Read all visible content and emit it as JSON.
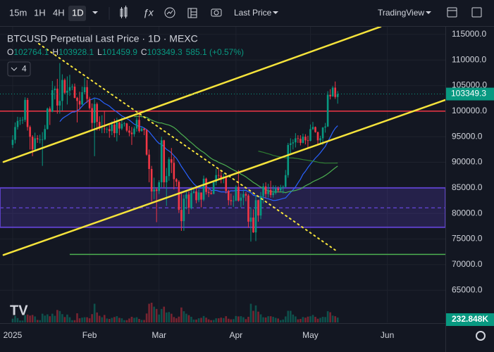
{
  "toolbar": {
    "intervals": [
      "15m",
      "1H",
      "4H",
      "1D"
    ],
    "price_type": "Last Price",
    "layout_name": "TradingView"
  },
  "chart_data": {
    "type": "candlestick",
    "title": "BTCUSD Perpetual Last Price · 1D · MEXC",
    "legend": {
      "labels": [
        "O",
        "H",
        "L",
        "C"
      ],
      "change": "585.1 (+0.57%)"
    },
    "indicator_count": "4",
    "up_color": "#089981",
    "down_color": "#f23645",
    "open": [
      93400,
      94400,
      96900,
      98100,
      98200,
      98300,
      102200,
      96900,
      95000,
      92500,
      94700,
      94500,
      94500,
      94500,
      96500,
      100500,
      99900,
      104100,
      104400,
      101100,
      102000,
      106100,
      103600,
      104000,
      104700,
      104800,
      102600,
      102000,
      101300,
      103700,
      104700,
      102400,
      100600,
      97700,
      101400,
      97900,
      96600,
      96600,
      96500,
      96500,
      96100,
      97400,
      95700,
      97800,
      96600,
      97500,
      97600,
      96200,
      95800,
      95500,
      96600,
      98300,
      96100,
      96600,
      96300,
      91500,
      88700,
      84300,
      84700,
      84400,
      86100,
      94300,
      86100,
      87300,
      90600,
      89900,
      86700,
      86200,
      80700,
      78500,
      82900,
      83700,
      81100,
      84000,
      84300,
      82600,
      84100,
      82700,
      86800,
      84200,
      84000,
      83800,
      86100,
      87500,
      87400,
      86900,
      87200,
      84400,
      82600,
      82400,
      82500,
      85200,
      82500,
      83100,
      83800,
      83500,
      78400,
      79200,
      76300,
      82600,
      79600,
      83400,
      85300,
      83800,
      84600,
      83600,
      84000,
      84900,
      84500,
      85100,
      85200,
      87500,
      93400,
      93700,
      93900,
      94700,
      94600,
      93800,
      95000,
      94300,
      94200,
      96500,
      96900,
      95900,
      94300,
      94700,
      96800,
      97000,
      103200,
      102900,
      104600,
      102764.1
    ],
    "high": [
      95300,
      97800,
      98900,
      98800,
      98900,
      102700,
      102600,
      97200,
      95300,
      95800,
      95300,
      95400,
      95900,
      97300,
      100700,
      100900,
      105900,
      104900,
      106300,
      109400,
      107200,
      106400,
      106800,
      107100,
      105300,
      105400,
      102800,
      103800,
      104800,
      106500,
      106100,
      102800,
      101500,
      102500,
      101700,
      99000,
      99200,
      100100,
      96900,
      97300,
      98000,
      98500,
      98700,
      97900,
      98800,
      97900,
      97700,
      97100,
      96900,
      97000,
      98800,
      99500,
      96900,
      96700,
      96500,
      92500,
      89300,
      87000,
      85100,
      86500,
      95000,
      94400,
      88900,
      91000,
      92800,
      91100,
      86900,
      86500,
      83900,
      83600,
      84400,
      84300,
      85200,
      85000,
      85000,
      84700,
      84100,
      87400,
      87000,
      85000,
      84500,
      86100,
      88700,
      88800,
      88300,
      87800,
      87500,
      84600,
      83900,
      83500,
      85500,
      88500,
      83900,
      84700,
      84200,
      83800,
      81200,
      80800,
      83500,
      82700,
      84200,
      85900,
      86100,
      85800,
      86400,
      85500,
      85500,
      85300,
      85600,
      85500,
      88500,
      93800,
      94700,
      94500,
      95700,
      95300,
      95300,
      95600,
      95500,
      95200,
      97400,
      97900,
      97000,
      96000,
      95200,
      96900,
      97700,
      103900,
      104300,
      104900,
      105800,
      103928.1
    ],
    "low": [
      92800,
      93700,
      96400,
      97300,
      97500,
      97900,
      96200,
      92500,
      91200,
      92200,
      93800,
      93700,
      89300,
      94300,
      96400,
      97300,
      99800,
      102300,
      99500,
      99500,
      100100,
      103300,
      101300,
      103000,
      104100,
      102500,
      97800,
      100300,
      101200,
      103300,
      101600,
      100300,
      96200,
      91200,
      96200,
      96200,
      95700,
      95700,
      95700,
      94800,
      95300,
      94900,
      94100,
      95300,
      96300,
      97000,
      95900,
      95100,
      93400,
      95000,
      96000,
      95800,
      96000,
      95300,
      91300,
      86100,
      82300,
      82800,
      78300,
      83800,
      85100,
      85100,
      81500,
      86400,
      87900,
      84700,
      85300,
      80100,
      76600,
      76600,
      80800,
      79900,
      80800,
      83900,
      82000,
      82200,
      81200,
      82400,
      83700,
      83200,
      83700,
      83800,
      85500,
      86500,
      85900,
      85900,
      83900,
      81600,
      81600,
      81300,
      82400,
      82300,
      81200,
      81600,
      82400,
      77200,
      74500,
      76200,
      74600,
      78400,
      78900,
      82000,
      83000,
      83100,
      83100,
      83100,
      83700,
      84100,
      84300,
      83900,
      85100,
      87000,
      91700,
      92500,
      92900,
      93800,
      93300,
      93700,
      93500,
      92900,
      94100,
      96300,
      95800,
      93500,
      93500,
      93400,
      95800,
      96900,
      102300,
      102800,
      102400,
      101459.9
    ],
    "close": [
      94400,
      96900,
      98100,
      98200,
      98300,
      102200,
      96900,
      95000,
      92500,
      94700,
      94500,
      94500,
      94500,
      96500,
      100500,
      99900,
      104100,
      104400,
      101100,
      102000,
      106100,
      103600,
      104000,
      104700,
      104800,
      102600,
      102000,
      101300,
      103700,
      104700,
      102400,
      100600,
      97700,
      101400,
      97900,
      96600,
      96600,
      96500,
      96500,
      96100,
      97400,
      95700,
      97800,
      96600,
      97500,
      97600,
      96200,
      95800,
      95500,
      96600,
      98300,
      96100,
      96600,
      96300,
      91500,
      88700,
      84300,
      84700,
      84400,
      86100,
      94300,
      86100,
      87300,
      90600,
      89900,
      86700,
      86200,
      80700,
      78500,
      82900,
      83700,
      81100,
      84000,
      84300,
      82600,
      84100,
      82700,
      86800,
      84200,
      84000,
      83800,
      86100,
      87500,
      87400,
      86900,
      87200,
      84400,
      82600,
      82400,
      82500,
      85200,
      82500,
      83100,
      83800,
      83500,
      78400,
      79200,
      76300,
      82600,
      79600,
      83400,
      85300,
      83800,
      84600,
      83600,
      84000,
      84900,
      84500,
      85100,
      85200,
      87500,
      93400,
      93700,
      93900,
      94700,
      94600,
      93800,
      95000,
      94300,
      94200,
      96500,
      96900,
      95900,
      94300,
      94700,
      96800,
      97000,
      103200,
      102900,
      104600,
      102764.1,
      103349.3
    ],
    "volume": [
      180000,
      320000,
      210000,
      90000,
      90000,
      350000,
      380000,
      330000,
      360000,
      290000,
      120000,
      110000,
      420000,
      330000,
      390000,
      300000,
      420000,
      320000,
      600000,
      550000,
      400000,
      260000,
      380000,
      250000,
      110000,
      110000,
      440000,
      200000,
      230000,
      250000,
      250000,
      200000,
      400000,
      900000,
      480000,
      320000,
      250000,
      360000,
      190000,
      170000,
      220000,
      260000,
      300000,
      220000,
      200000,
      110000,
      110000,
      190000,
      270000,
      220000,
      250000,
      170000,
      120000,
      120000,
      430000,
      900000,
      950000,
      760000,
      650000,
      380000,
      650000,
      760000,
      480000,
      500000,
      420000,
      260000,
      200000,
      280000,
      720000,
      540000,
      420000,
      350000,
      270000,
      140000,
      140000,
      200000,
      220000,
      310000,
      230000,
      150000,
      110000,
      120000,
      200000,
      200000,
      230000,
      210000,
      300000,
      180000,
      150000,
      160000,
      310000,
      290000,
      300000,
      250000,
      160000,
      270000,
      900000,
      560000,
      820000,
      520000,
      390000,
      250000,
      240000,
      300000,
      300000,
      270000,
      220000,
      190000,
      110000,
      140000,
      290000,
      560000,
      560000,
      380000,
      290000,
      150000,
      170000,
      260000,
      230000,
      280000,
      300000,
      360000,
      270000,
      180000,
      220000,
      270000,
      260000,
      540000,
      490000,
      330000,
      300000,
      232848
    ],
    "volume_label": "232.848K",
    "ylim": [
      58700,
      116500
    ],
    "yticks": [
      {
        "value": 65000,
        "label": "65000.0"
      },
      {
        "value": 70000,
        "label": "70000.0"
      },
      {
        "value": 75000,
        "label": "75000.0"
      },
      {
        "value": 80000,
        "label": "80000.0"
      },
      {
        "value": 85000,
        "label": "85000.0"
      },
      {
        "value": 90000,
        "label": "90000.0"
      },
      {
        "value": 95000,
        "label": "95000.0"
      },
      {
        "value": 100000,
        "label": "100000.0"
      },
      {
        "value": 105000,
        "label": "105000.0"
      },
      {
        "value": 110000,
        "label": "110000.0"
      },
      {
        "value": 115000,
        "label": "115000.0"
      }
    ],
    "xlim": [
      -5.1,
      174.4
    ],
    "xticks": [
      {
        "value": 0,
        "label": "2025"
      },
      {
        "value": 31,
        "label": "Feb"
      },
      {
        "value": 59,
        "label": "Mar"
      },
      {
        "value": 90,
        "label": "Apr"
      },
      {
        "value": 120,
        "label": "May"
      },
      {
        "value": 151,
        "label": "Jun"
      }
    ],
    "moving_averages": [
      {
        "period": 20,
        "color": "#2962ff"
      },
      {
        "period": 50,
        "color": "#4caf50"
      },
      {
        "period": 100,
        "color": "#2e7d32"
      }
    ],
    "trendlines": [
      {
        "points": [
          [
            -3.7,
            90070
          ],
          [
            148.3,
            116515
          ]
        ],
        "color": "#f5e33b",
        "dotted": false
      },
      {
        "points": [
          [
            -3.7,
            71890
          ],
          [
            174.4,
            102190
          ]
        ],
        "color": "#f5e33b",
        "dotted": false
      },
      {
        "points": [
          [
            10.5,
            113200
          ],
          [
            130,
            72850
          ]
        ],
        "color": "#f5e33b",
        "dotted": true
      }
    ],
    "hlines": [
      {
        "value": 100000,
        "color": "#f23645",
        "from": -5.1
      },
      {
        "value": 72000,
        "color": "#4caf50",
        "from": 23
      }
    ],
    "zone": {
      "range": [
        77300,
        85000
      ],
      "mid": 81100,
      "color": "#5b3fc4"
    }
  }
}
